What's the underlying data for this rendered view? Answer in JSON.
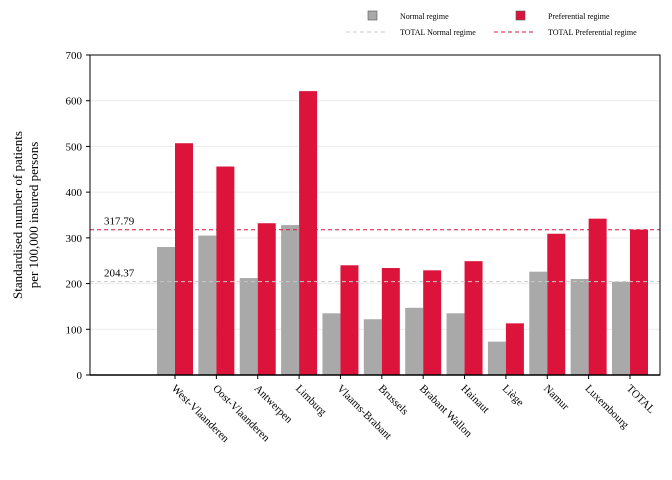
{
  "chart_data": {
    "type": "bar",
    "title": "",
    "ylabel_lines": [
      "Standardised number of patients",
      "per 100,000 insured persons"
    ],
    "xlabel": "",
    "ylim": [
      0,
      700
    ],
    "yticks": [
      0,
      100,
      200,
      300,
      400,
      500,
      600,
      700
    ],
    "grid": true,
    "legend_position": "top",
    "categories": [
      "West-Vlaanderen",
      "Oost-Vlaanderen",
      "Antwerpen",
      "Limburg",
      "Vlaams-Brabant",
      "Brussels",
      "Brabant Wallon",
      "Hainaut",
      "Liège",
      "Namur",
      "Luxembourg",
      "TOTAL"
    ],
    "series": [
      {
        "name": "Normal regime",
        "color": "#a9a9a9",
        "values": [
          280,
          305,
          212,
          328,
          135,
          122,
          147,
          135,
          73,
          226,
          210,
          204
        ]
      },
      {
        "name": "Preferential regime",
        "color": "#dc143c",
        "values": [
          507,
          456,
          332,
          621,
          240,
          234,
          229,
          249,
          113,
          309,
          342,
          318
        ]
      }
    ],
    "reference_lines": [
      {
        "name": "TOTAL Normal regime",
        "value": 204.37,
        "label": "204.37",
        "color": "#c8c8c8"
      },
      {
        "name": "TOTAL Preferential regime",
        "value": 317.79,
        "label": "317.79",
        "color": "#dc143c"
      }
    ]
  }
}
